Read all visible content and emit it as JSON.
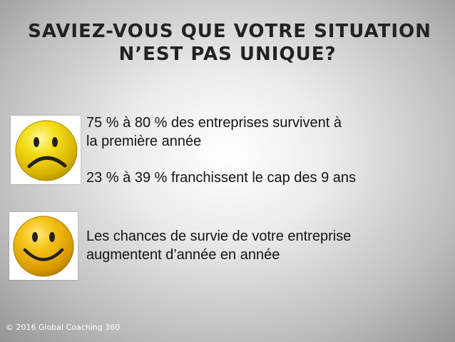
{
  "title": {
    "line1": "SAVIEZ-VOUS QUE VOTRE SITUATION",
    "line2": "N’EST PAS UNIQUE?"
  },
  "icons": {
    "sad": "sad-face-icon",
    "happy": "smiley-face-icon",
    "face_color": "#f2d40a"
  },
  "bullets": [
    {
      "lines": [
        "75 % à 80 % des entreprises survivent à",
        "la première année"
      ]
    },
    {
      "lines": [
        "23 % à 39 % franchissent le cap des 9 ans"
      ]
    },
    {
      "lines": [
        "Les chances de survie de votre entreprise",
        "augmentent d’année en année"
      ]
    }
  ],
  "footer": "© 2016 Global Coaching 360"
}
